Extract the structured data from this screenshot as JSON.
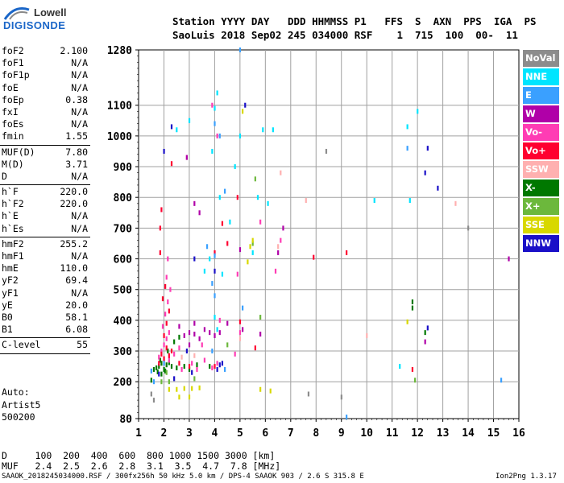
{
  "logo": {
    "line1": "Lowell",
    "line2": "DIGISONDE"
  },
  "header": {
    "line1": "Station YYYY DAY   DDD HHMMSS P1   FFS  S  AXN  PPS  IGA  PS",
    "line2": "SaoLuis 2018 Sep02 245 034000 RSF    1  715  100  00-  11"
  },
  "params": [
    {
      "name": "foF2",
      "value": "2.100"
    },
    {
      "name": "foF1",
      "value": "N/A"
    },
    {
      "name": "foF1p",
      "value": "N/A"
    },
    {
      "name": "foE",
      "value": "N/A"
    },
    {
      "name": "foEp",
      "value": "0.38"
    },
    {
      "name": "fxI",
      "value": "N/A"
    },
    {
      "name": "foEs",
      "value": "N/A"
    },
    {
      "name": "fmin",
      "value": "1.55",
      "sep": true
    },
    {
      "name": "MUF(D)",
      "value": "7.80"
    },
    {
      "name": "M(D)",
      "value": "3.71"
    },
    {
      "name": "D",
      "value": "N/A",
      "sep": true
    },
    {
      "name": "h`F",
      "value": "220.0"
    },
    {
      "name": "h`F2",
      "value": "220.0"
    },
    {
      "name": "h`E",
      "value": "N/A"
    },
    {
      "name": "h`Es",
      "value": "N/A",
      "sep": true
    },
    {
      "name": "hmF2",
      "value": "255.2"
    },
    {
      "name": "hmF1",
      "value": "N/A"
    },
    {
      "name": "hmE",
      "value": "110.0"
    },
    {
      "name": "yF2",
      "value": "69.4"
    },
    {
      "name": "yF1",
      "value": "N/A"
    },
    {
      "name": "yE",
      "value": "20.0"
    },
    {
      "name": "B0",
      "value": "58.1"
    },
    {
      "name": "B1",
      "value": "6.08",
      "sep": true
    },
    {
      "name": "C-level",
      "value": "55",
      "sep": true
    }
  ],
  "auto": [
    "Auto:",
    "Artist5",
    "500200"
  ],
  "legend": [
    {
      "label": "NoVal",
      "color": "#8c8c8c"
    },
    {
      "label": "NNE",
      "color": "#00e5ff"
    },
    {
      "label": "E",
      "color": "#3aa0ff"
    },
    {
      "label": "W",
      "color": "#b000a8"
    },
    {
      "label": "Vo-",
      "color": "#ff3cb4"
    },
    {
      "label": "Vo+",
      "color": "#ff0030"
    },
    {
      "label": "SSW",
      "color": "#ffb0b0"
    },
    {
      "label": "X-",
      "color": "#007800"
    },
    {
      "label": "X+",
      "color": "#6cb83c"
    },
    {
      "label": "SSE",
      "color": "#d8d800"
    },
    {
      "label": "NNW",
      "color": "#1a10c8"
    }
  ],
  "bottom": {
    "d_row": "D     100  200  400  600  800 1000 1500 3000 [km]",
    "muf_row": "MUF   2.4  2.5  2.6  2.8  3.1  3.5  4.7  7.8 [MHz]"
  },
  "footer": {
    "left": "SAAOK_2018245034000.RSF / 300fx256h 50 kHz 5.0 km / DPS-4 SAAOK 903 / 2.6 S 315.8 E",
    "right": "Ion2Png 1.3.17"
  },
  "chart_data": {
    "type": "scatter",
    "x_ticks": [
      1,
      2,
      3,
      4,
      5,
      6,
      7,
      8,
      9,
      10,
      11,
      12,
      13,
      14,
      15,
      16
    ],
    "y_ticks": [
      80,
      200,
      300,
      400,
      500,
      600,
      700,
      800,
      900,
      1000,
      1100,
      1280
    ],
    "xlim": [
      1,
      16
    ],
    "ylim": [
      80,
      1280
    ],
    "grid": true,
    "series": [
      {
        "color": "#007800",
        "points": [
          [
            1.7,
            245
          ],
          [
            1.8,
            250
          ],
          [
            1.9,
            260
          ],
          [
            2.0,
            240
          ],
          [
            2.1,
            255
          ],
          [
            2.2,
            262
          ],
          [
            1.85,
            270
          ],
          [
            2.05,
            235
          ],
          [
            1.75,
            232
          ],
          [
            2.3,
            250
          ],
          [
            2.5,
            245
          ],
          [
            3.3,
            255
          ],
          [
            3.8,
            250
          ],
          [
            2.8,
            250
          ],
          [
            1.6,
            240
          ],
          [
            2.15,
            300
          ],
          [
            2.4,
            330
          ],
          [
            2.6,
            345
          ],
          [
            3.0,
            240
          ],
          [
            11.8,
            440
          ],
          [
            11.8,
            460
          ],
          [
            12.3,
            360
          ],
          [
            1.5,
            205
          ],
          [
            1.9,
            225
          ]
        ]
      },
      {
        "color": "#ff3cb4",
        "points": [
          [
            1.8,
            280
          ],
          [
            1.9,
            300
          ],
          [
            2.0,
            320
          ],
          [
            2.1,
            340
          ],
          [
            2.2,
            360
          ],
          [
            1.95,
            380
          ],
          [
            2.05,
            420
          ],
          [
            2.15,
            460
          ],
          [
            2.25,
            500
          ],
          [
            2.0,
            260
          ],
          [
            2.4,
            290
          ],
          [
            2.6,
            310
          ],
          [
            3.1,
            260
          ],
          [
            3.3,
            240
          ],
          [
            3.6,
            270
          ],
          [
            4.1,
            260
          ],
          [
            4.8,
            290
          ],
          [
            5.0,
            360
          ],
          [
            2.2,
            270
          ],
          [
            2.7,
            240
          ],
          [
            3.9,
            245
          ],
          [
            4.2,
            400
          ],
          [
            3.5,
            320
          ],
          [
            4.9,
            550
          ],
          [
            6.6,
            660
          ],
          [
            2.1,
            540
          ],
          [
            2.15,
            600
          ],
          [
            2.9,
            930
          ],
          [
            5.8,
            720
          ],
          [
            6.4,
            560
          ],
          [
            3.9,
            1100
          ],
          [
            4.1,
            1000
          ]
        ]
      },
      {
        "color": "#ff0030",
        "points": [
          [
            1.8,
            260
          ],
          [
            1.9,
            290
          ],
          [
            2.0,
            275
          ],
          [
            2.1,
            310
          ],
          [
            2.2,
            285
          ],
          [
            2.3,
            300
          ],
          [
            2.0,
            350
          ],
          [
            2.1,
            390
          ],
          [
            2.2,
            430
          ],
          [
            1.95,
            470
          ],
          [
            2.05,
            510
          ],
          [
            2.6,
            260
          ],
          [
            3.0,
            250
          ],
          [
            4.0,
            250
          ],
          [
            5.0,
            395
          ],
          [
            5.6,
            310
          ],
          [
            4.5,
            650
          ],
          [
            4.0,
            620
          ],
          [
            1.85,
            700
          ],
          [
            1.9,
            760
          ],
          [
            4.9,
            800
          ],
          [
            11.8,
            240
          ],
          [
            7.9,
            605
          ],
          [
            9.2,
            620
          ],
          [
            1.85,
            620
          ],
          [
            2.3,
            910
          ],
          [
            4.3,
            715
          ]
        ]
      },
      {
        "color": "#b000a8",
        "points": [
          [
            2.8,
            350
          ],
          [
            3.0,
            360
          ],
          [
            3.2,
            355
          ],
          [
            3.4,
            340
          ],
          [
            3.6,
            370
          ],
          [
            3.8,
            360
          ],
          [
            4.0,
            350
          ],
          [
            3.2,
            390
          ],
          [
            2.6,
            380
          ],
          [
            2.9,
            930
          ],
          [
            3.2,
            780
          ],
          [
            3.4,
            750
          ],
          [
            4.2,
            360
          ],
          [
            4.5,
            390
          ],
          [
            5.1,
            370
          ],
          [
            5.8,
            355
          ],
          [
            6.5,
            620
          ],
          [
            6.7,
            700
          ],
          [
            12.3,
            330
          ],
          [
            15.6,
            600
          ],
          [
            5.0,
            630
          ],
          [
            3.0,
            320
          ]
        ]
      },
      {
        "color": "#1a10c8",
        "points": [
          [
            2.3,
            1030
          ],
          [
            3.2,
            600
          ],
          [
            4.0,
            560
          ],
          [
            4.2,
            255
          ],
          [
            4.3,
            260
          ],
          [
            12.4,
            960
          ],
          [
            12.3,
            880
          ],
          [
            12.8,
            830
          ],
          [
            12.4,
            375
          ],
          [
            2.0,
            950
          ],
          [
            3.1,
            230
          ],
          [
            5.2,
            1100
          ],
          [
            2.9,
            300
          ],
          [
            1.8,
            225
          ],
          [
            2.4,
            210
          ],
          [
            4.1,
            240
          ]
        ]
      },
      {
        "color": "#00e5ff",
        "points": [
          [
            4.0,
            1090
          ],
          [
            4.1,
            1140
          ],
          [
            3.9,
            950
          ],
          [
            4.2,
            800
          ],
          [
            3.8,
            600
          ],
          [
            4.3,
            550
          ],
          [
            4.6,
            720
          ],
          [
            5.0,
            1000
          ],
          [
            5.5,
            620
          ],
          [
            4.0,
            410
          ],
          [
            4.1,
            370
          ],
          [
            3.6,
            560
          ],
          [
            3.0,
            1050
          ],
          [
            12.0,
            1080
          ],
          [
            11.6,
            1030
          ],
          [
            11.7,
            790
          ],
          [
            10.3,
            790
          ],
          [
            11.3,
            250
          ],
          [
            2.5,
            1020
          ],
          [
            5.9,
            1020
          ],
          [
            6.3,
            1020
          ],
          [
            6.1,
            780
          ],
          [
            5.7,
            800
          ],
          [
            4.8,
            900
          ]
        ]
      },
      {
        "color": "#3aa0ff",
        "points": [
          [
            4.0,
            1040
          ],
          [
            4.2,
            1000
          ],
          [
            4.4,
            820
          ],
          [
            3.7,
            640
          ],
          [
            3.9,
            520
          ],
          [
            4.0,
            480
          ],
          [
            3.9,
            300
          ],
          [
            5.1,
            440
          ],
          [
            4.4,
            240
          ],
          [
            11.6,
            960
          ],
          [
            15.3,
            205
          ],
          [
            9.2,
            85
          ],
          [
            1.5,
            235
          ],
          [
            1.6,
            200
          ],
          [
            2.0,
            260
          ],
          [
            4.0,
            610
          ],
          [
            5.0,
            1280
          ]
        ]
      },
      {
        "color": "#6cb83c",
        "points": [
          [
            1.9,
            200
          ],
          [
            2.2,
            200
          ],
          [
            3.2,
            210
          ],
          [
            2.1,
            230
          ],
          [
            5.8,
            410
          ],
          [
            5.6,
            860
          ],
          [
            4.5,
            320
          ],
          [
            5.5,
            650
          ],
          [
            11.9,
            205
          ]
        ]
      },
      {
        "color": "#d8d800",
        "points": [
          [
            2.2,
            175
          ],
          [
            2.5,
            175
          ],
          [
            2.8,
            178
          ],
          [
            3.1,
            178
          ],
          [
            3.4,
            180
          ],
          [
            5.4,
            640
          ],
          [
            5.5,
            660
          ],
          [
            5.3,
            590
          ],
          [
            5.8,
            175
          ],
          [
            6.2,
            170
          ],
          [
            5.1,
            1080
          ],
          [
            11.6,
            395
          ],
          [
            3.0,
            150
          ],
          [
            2.6,
            150
          ]
        ]
      },
      {
        "color": "#ffb0b0",
        "points": [
          [
            6.6,
            880
          ],
          [
            6.5,
            640
          ],
          [
            2.7,
            280
          ],
          [
            3.2,
            285
          ],
          [
            5.0,
            340
          ],
          [
            7.6,
            790
          ],
          [
            10.0,
            350
          ],
          [
            13.5,
            780
          ]
        ]
      },
      {
        "color": "#8c8c8c",
        "points": [
          [
            1.5,
            160
          ],
          [
            1.6,
            140
          ],
          [
            7.7,
            160
          ],
          [
            8.4,
            950
          ],
          [
            9.0,
            150
          ],
          [
            14.0,
            700
          ]
        ]
      }
    ]
  }
}
